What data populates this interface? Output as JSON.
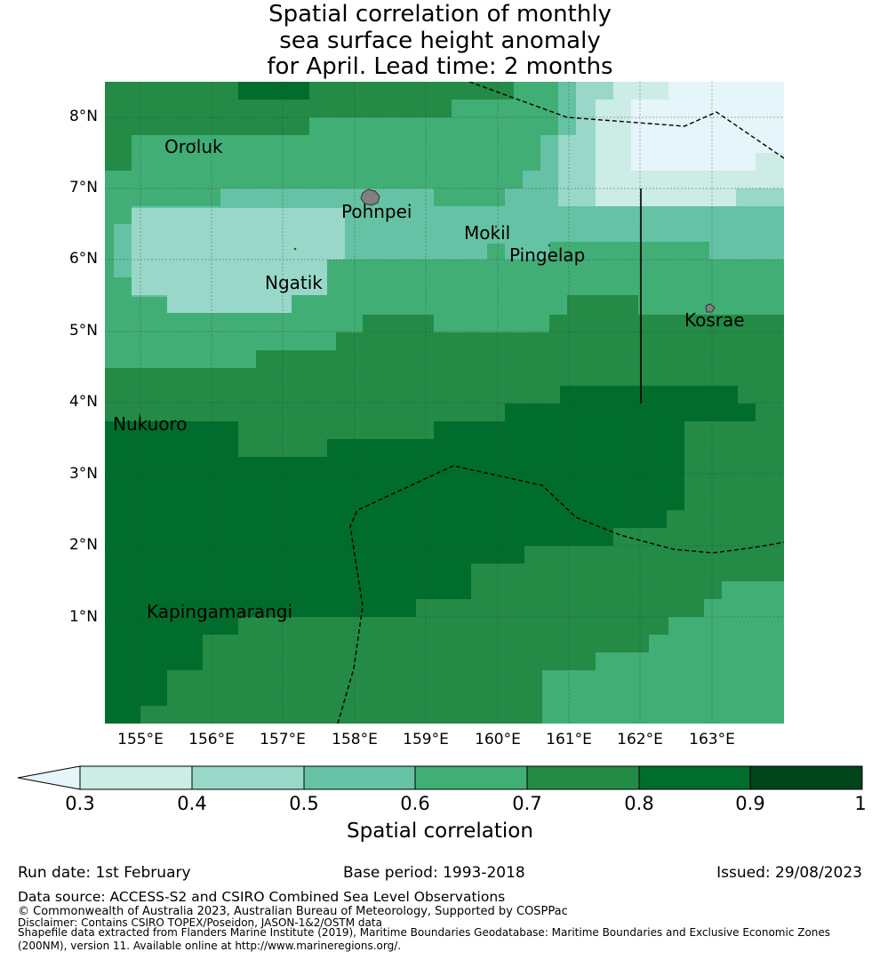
{
  "title": {
    "line1": "Spatial correlation of monthly",
    "line2": "sea surface height anomaly",
    "line3": "for April. Lead time: 2 months"
  },
  "map": {
    "latitude_labels": [
      "8°N",
      "7°N",
      "6°N",
      "5°N",
      "4°N",
      "3°N",
      "2°N",
      "1°N"
    ],
    "longitude_labels": [
      "155°E",
      "156°E",
      "157°E",
      "158°E",
      "159°E",
      "160°E",
      "161°E",
      "162°E",
      "163°E"
    ],
    "places": [
      "Oroluk",
      "Pohnpei",
      "Mokil",
      "Pingelap",
      "Ngatik",
      "Kosrae",
      "Nukuoro",
      "Kapingamarangi"
    ],
    "land_color": "#808080"
  },
  "colorbar": {
    "ticks": [
      "0.3",
      "0.4",
      "0.5",
      "0.6",
      "0.7",
      "0.8",
      "0.9",
      "1"
    ],
    "label": "Spatial correlation",
    "colors": [
      "#e5f5f9",
      "#ccece6",
      "#99d8c9",
      "#66c2a4",
      "#41ae76",
      "#238b45",
      "#006d2c",
      "#00441b"
    ]
  },
  "meta": {
    "run_date": "Run date: 1st February",
    "base_period": "Base period: 1993-2018",
    "issued": "Issued: 29/08/2023"
  },
  "footer": {
    "data_source": "Data source: ACCESS-S2 and CSIRO Combined Sea Level Observations",
    "copyright": "© Commonwealth of Australia 2023, Australian Bureau of Meteorology, Supported by COSPPac",
    "disclaimer": "Disclaimer: Contains CSIRO TOPEX/Poseidon, JASON-1&2/OSTM data",
    "shapefile_1": "Shapefile data extracted from Flanders Marine Institute (2019), Maritime Boundaries Geodatabase: Maritime Boundaries and Exclusive Economic Zones",
    "shapefile_2": "(200NM), version 11. Available online at http://www.marineregions.org/."
  }
}
